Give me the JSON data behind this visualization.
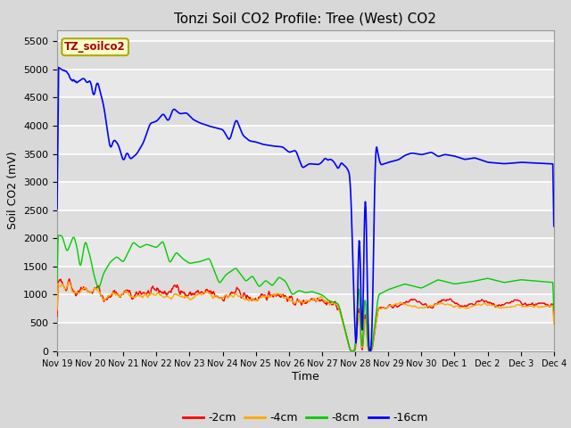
{
  "title": "Tonzi Soil CO2 Profile: Tree (West) CO2",
  "ylabel": "Soil CO2 (mV)",
  "xlabel": "Time",
  "legend_label": "TZ_soilco2",
  "series_labels": [
    "-2cm",
    "-4cm",
    "-8cm",
    "-16cm"
  ],
  "series_colors": [
    "#ff0000",
    "#ffaa00",
    "#00cc00",
    "#0000ff"
  ],
  "ylim": [
    0,
    5700
  ],
  "yticks": [
    0,
    500,
    1000,
    1500,
    2000,
    2500,
    3000,
    3500,
    4000,
    4500,
    5000,
    5500
  ],
  "xtick_labels": [
    "Nov 19",
    "Nov 20",
    "Nov 21",
    "Nov 22",
    "Nov 23",
    "Nov 24",
    "Nov 25",
    "Nov 26",
    "Nov 27",
    "Nov 28",
    "Nov 29",
    "Nov 30",
    "Dec 1",
    "Dec 2",
    "Dec 3",
    "Dec 4"
  ],
  "bg_color": "#d8d8d8",
  "plot_bg_color": "#e8e8e8",
  "title_fontsize": 11,
  "legend_box_color": "#ffffcc",
  "legend_text_color": "#aa0000",
  "legend_box_edge": "#aaaa00"
}
